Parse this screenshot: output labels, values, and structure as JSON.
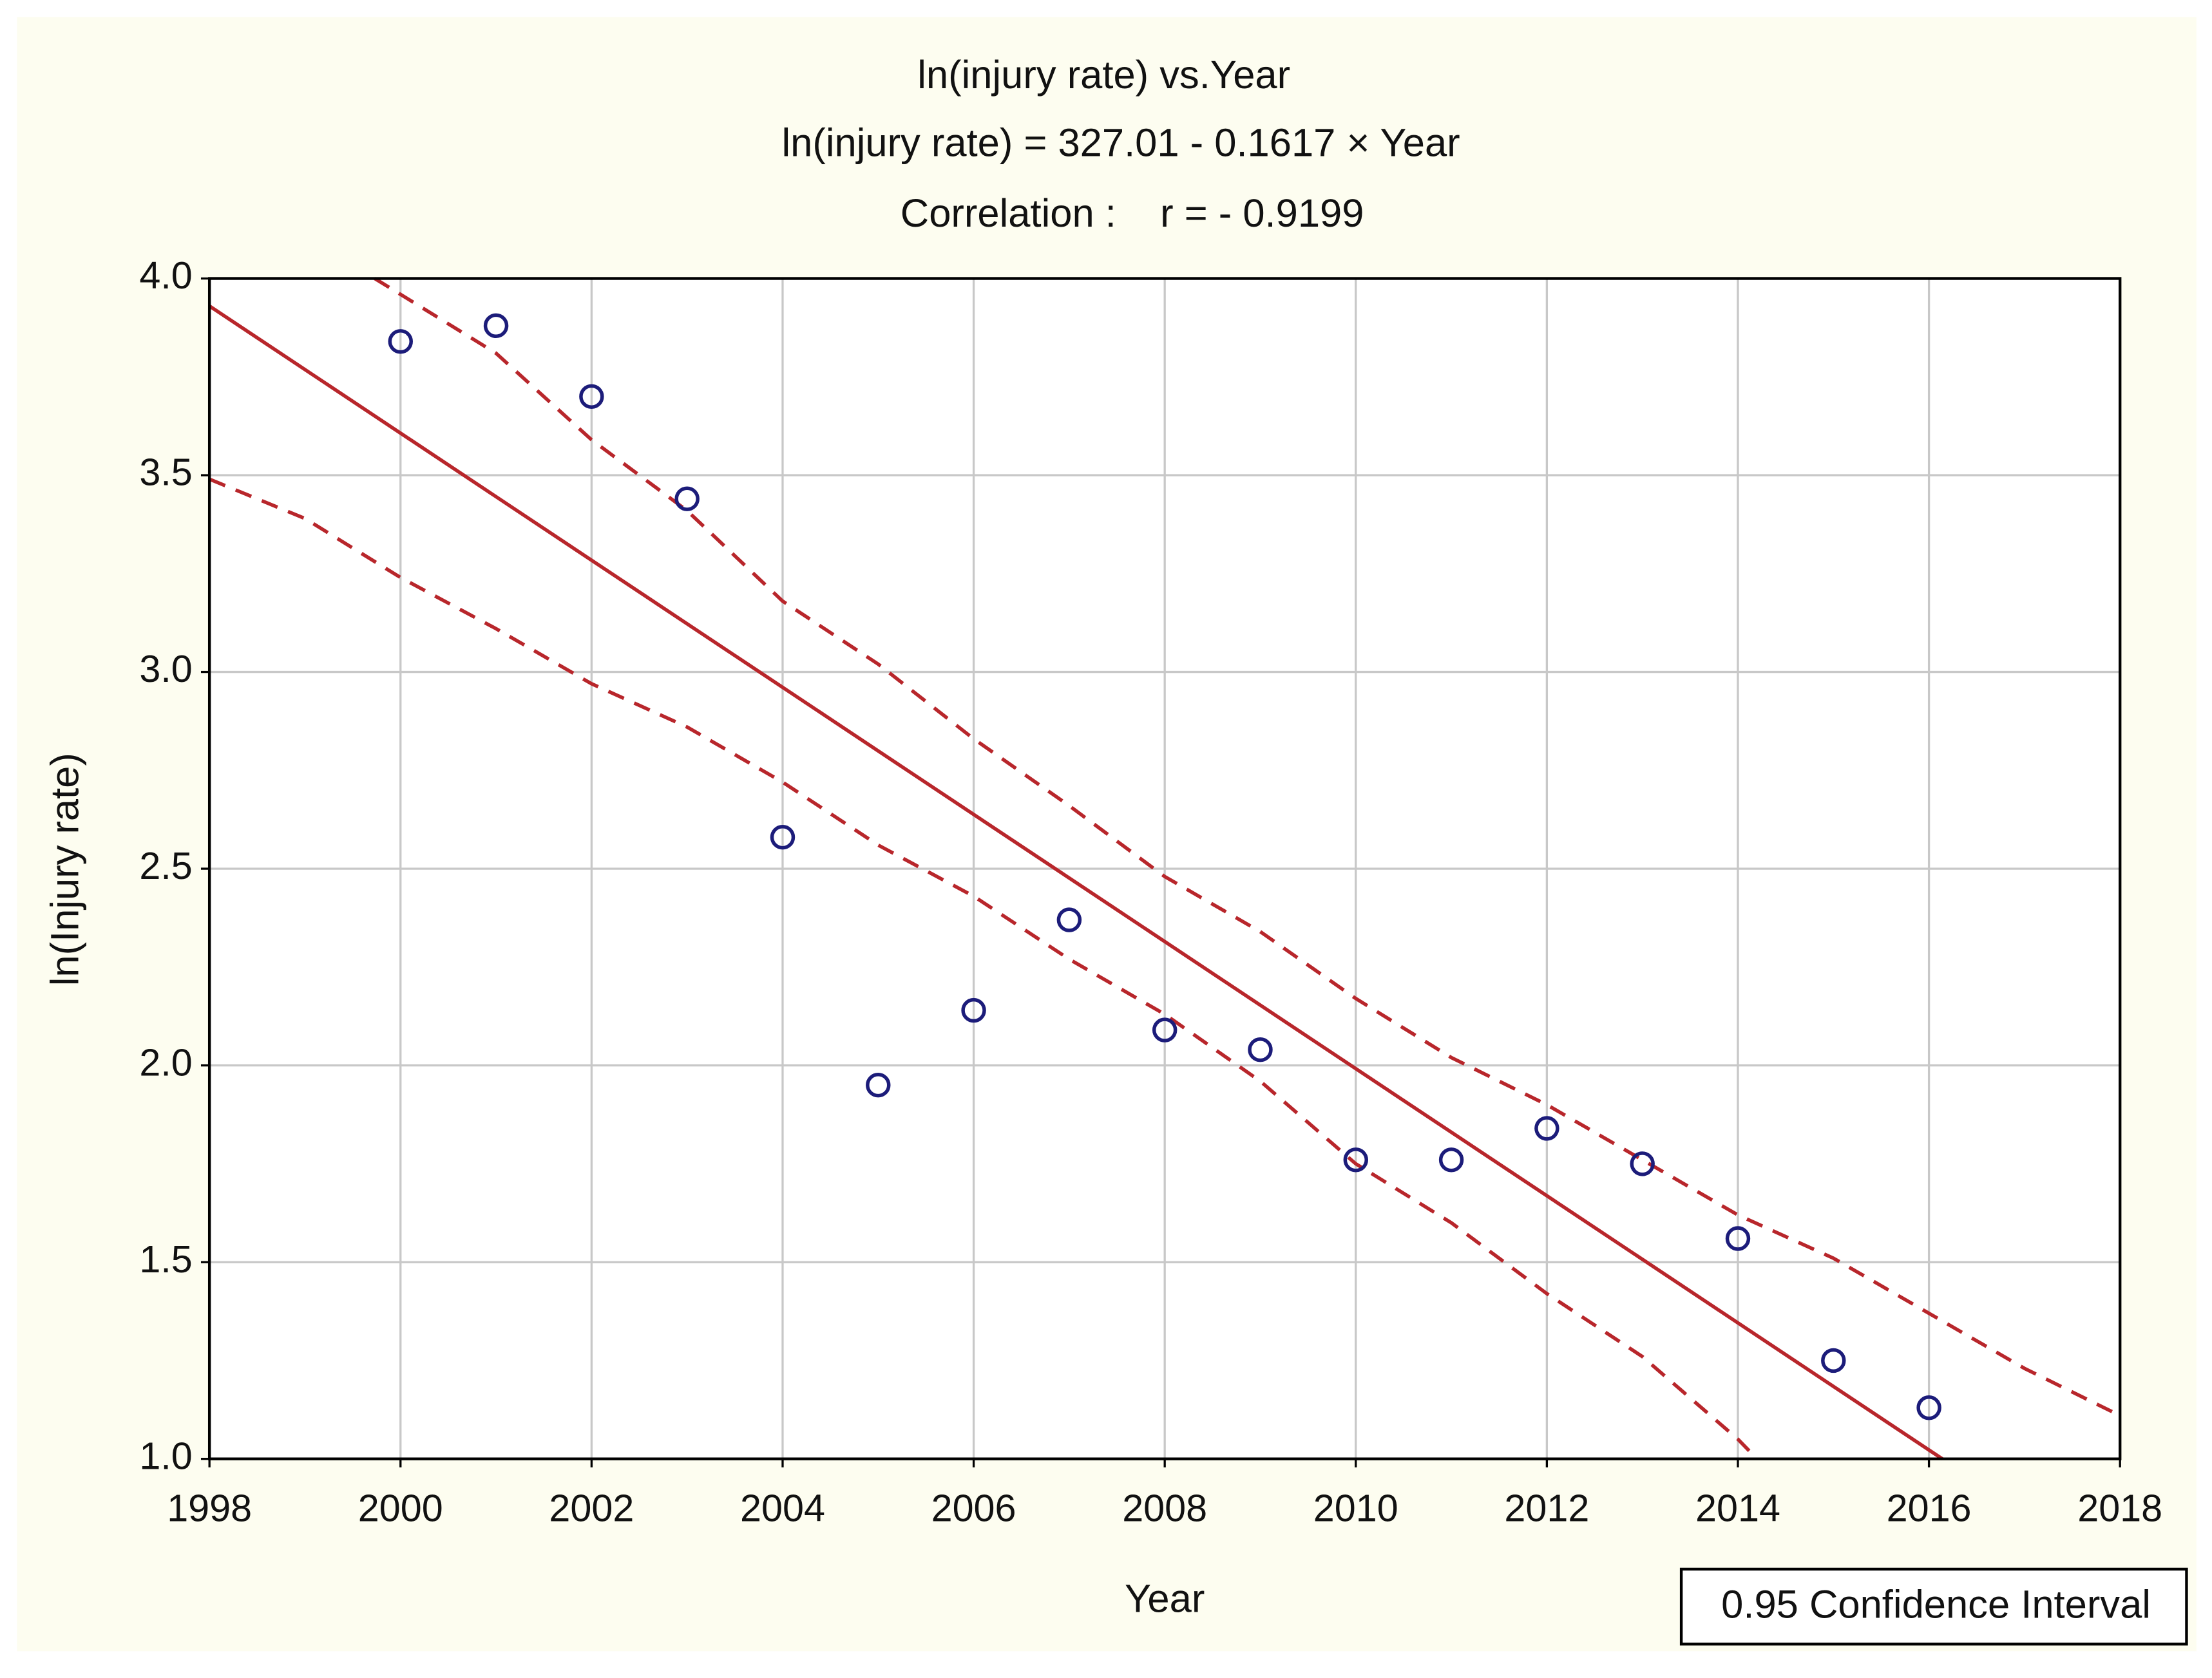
{
  "chart_data": {
    "type": "scatter",
    "title": "ln(injury rate) vs.Year",
    "subtitle": "ln(injury rate) = 327.01 -  0.1617 × Year",
    "annotation": "Correlation :    r = - 0.9199",
    "x_label": "Year",
    "y_label": "ln(Injury rate)",
    "legend_label": "0.95 Confidence Interval",
    "legend_position": "bottom-right",
    "grid": true,
    "xlim": [
      1998,
      2018
    ],
    "ylim": [
      1.0,
      4.0
    ],
    "xticks": [
      1998,
      2000,
      2002,
      2004,
      2006,
      2008,
      2010,
      2012,
      2014,
      2016,
      2018
    ],
    "yticks": [
      {
        "value": 1.0,
        "label": "1.0"
      },
      1.5,
      {
        "value": 2.0,
        "label": "2.0"
      },
      2.5,
      {
        "value": 3.0,
        "label": "3.0"
      },
      3.5,
      {
        "value": 4.0,
        "label": "4.0"
      }
    ],
    "points": {
      "color": "#1c1c7a",
      "x": [
        2000,
        2001,
        2002,
        2003,
        2004,
        2005,
        2006,
        2007,
        2008,
        2009,
        2010,
        2011,
        2012,
        2013,
        2014,
        2015,
        2016
      ],
      "values": [
        3.84,
        3.88,
        3.7,
        3.44,
        2.58,
        1.95,
        2.14,
        2.37,
        2.09,
        2.04,
        1.76,
        1.76,
        1.84,
        1.75,
        1.56,
        1.25,
        1.13
      ]
    },
    "fit": {
      "color": "#b8262b",
      "x": [
        1998,
        2016.14
      ],
      "values": [
        3.93,
        1.0
      ]
    },
    "ci_upper": {
      "color": "#b8262b",
      "x": [
        1999.73,
        2001,
        2002,
        2003,
        2004,
        2005,
        2006,
        2007,
        2008,
        2009,
        2010,
        2011,
        2012,
        2013,
        2014,
        2015,
        2016,
        2017,
        2018
      ],
      "values": [
        4.0,
        3.81,
        3.59,
        3.41,
        3.18,
        3.02,
        2.83,
        2.66,
        2.48,
        2.34,
        2.17,
        2.02,
        1.9,
        1.76,
        1.62,
        1.51,
        1.37,
        1.23,
        1.11
      ]
    },
    "ci_lower": {
      "color": "#b8262b",
      "x": [
        1998,
        1999,
        2000,
        2001,
        2002,
        2003,
        2004,
        2005,
        2006,
        2007,
        2008,
        2009,
        2010,
        2011,
        2012,
        2013,
        2014,
        2014.2
      ],
      "values": [
        3.49,
        3.39,
        3.24,
        3.11,
        2.97,
        2.86,
        2.72,
        2.56,
        2.43,
        2.27,
        2.13,
        1.96,
        1.75,
        1.6,
        1.42,
        1.26,
        1.05,
        1.0
      ]
    }
  }
}
